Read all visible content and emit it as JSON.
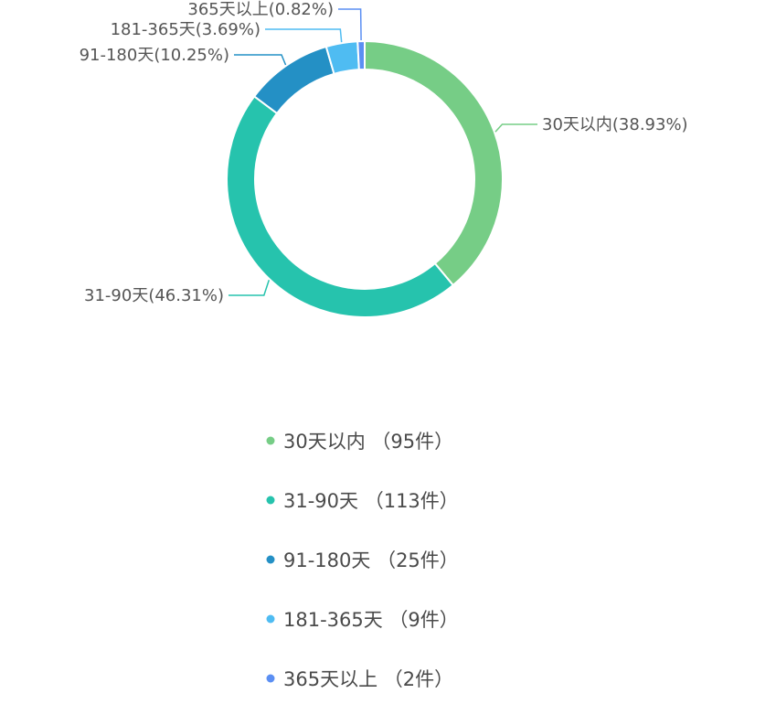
{
  "chart_data": {
    "type": "pie",
    "variant": "donut",
    "legend_position": "bottom-center",
    "title": "",
    "slices": [
      {
        "name": "30天以内",
        "count": 95,
        "percent": 38.93,
        "color": "#76cd86",
        "label": "30天以内(38.93%)",
        "legend_label": "30天以内",
        "legend_count": "（95件）"
      },
      {
        "name": "31-90天",
        "count": 113,
        "percent": 46.31,
        "color": "#26c3ad",
        "label": "31-90天(46.31%)",
        "legend_label": "31-90天",
        "legend_count": "（113件）"
      },
      {
        "name": "91-180天",
        "count": 25,
        "percent": 10.25,
        "color": "#2490c5",
        "label": "91-180天(10.25%)",
        "legend_label": "91-180天",
        "legend_count": "（25件）"
      },
      {
        "name": "181-365天",
        "count": 9,
        "percent": 3.69,
        "color": "#4fbcf2",
        "label": "181-365天(3.69%)",
        "legend_label": "181-365天",
        "legend_count": "（9件）"
      },
      {
        "name": "365天以上",
        "count": 2,
        "percent": 0.82,
        "color": "#5b8ff3",
        "label": "365天以上(0.82%)",
        "legend_label": "365天以上",
        "legend_count": "（2件）"
      }
    ]
  }
}
